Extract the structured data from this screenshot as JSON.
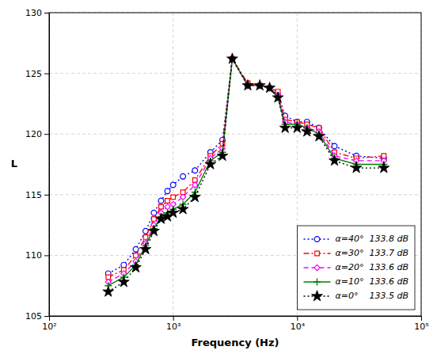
{
  "chart_data": {
    "type": "line",
    "xlabel": "Frequency (Hz)",
    "ylabel": "L",
    "log": "x",
    "xlim": [
      100,
      100000
    ],
    "ylim": [
      105,
      130
    ],
    "xticks": [
      {
        "value": 100,
        "label": "10²"
      },
      {
        "value": 1000,
        "label": "10³"
      },
      {
        "value": 10000,
        "label": "10⁴"
      },
      {
        "value": 100000,
        "label": "10⁵"
      }
    ],
    "yticks": [
      105,
      110,
      115,
      120,
      125,
      130
    ],
    "grid": true,
    "legend": "lower right",
    "x": [
      300,
      400,
      500,
      600,
      700,
      800,
      900,
      1000,
      1200,
      1500,
      2000,
      2500,
      3000,
      4000,
      5000,
      6000,
      7000,
      8000,
      10000,
      12000,
      15000,
      20000,
      30000,
      50000
    ],
    "series": [
      {
        "name": "α=40°  133.8 dB",
        "color": "#0000FF",
        "line_style": "dotted",
        "marker": "circle",
        "values": [
          108.5,
          109.2,
          110.5,
          112.0,
          113.5,
          114.5,
          115.3,
          115.8,
          116.5,
          117.0,
          118.5,
          119.5,
          126.2,
          124.0,
          124.0,
          123.8,
          123.2,
          121.5,
          121.0,
          121.0,
          120.5,
          119.0,
          118.2,
          118.0
        ]
      },
      {
        "name": "α=30°  133.7 dB",
        "color": "#FF0000",
        "line_style": "dashdot",
        "marker": "square",
        "values": [
          108.2,
          108.8,
          110.0,
          111.5,
          113.0,
          114.0,
          114.5,
          114.8,
          115.2,
          116.2,
          118.2,
          119.2,
          126.2,
          124.2,
          124.0,
          123.8,
          123.5,
          121.2,
          121.0,
          120.8,
          120.5,
          118.5,
          118.0,
          118.2
        ]
      },
      {
        "name": "α=20°  133.6 dB",
        "color": "#FF00FF",
        "line_style": "dashed",
        "marker": "diamond",
        "values": [
          107.8,
          108.5,
          109.5,
          111.0,
          112.5,
          113.5,
          114.0,
          114.2,
          114.8,
          115.8,
          118.0,
          118.8,
          126.2,
          124.0,
          124.0,
          123.8,
          123.2,
          121.0,
          120.8,
          120.5,
          120.2,
          118.2,
          117.8,
          117.8
        ]
      },
      {
        "name": "α=10°  133.6 dB",
        "color": "#008000",
        "line_style": "solid",
        "marker": "plus",
        "values": [
          107.5,
          108.2,
          109.2,
          110.8,
          112.2,
          113.2,
          113.5,
          113.8,
          114.2,
          115.2,
          117.8,
          118.5,
          126.2,
          124.0,
          124.0,
          123.8,
          123.0,
          120.8,
          120.8,
          120.5,
          120.0,
          118.0,
          117.5,
          117.5
        ]
      },
      {
        "name": "α=0°    133.5 dB",
        "color": "#000000",
        "line_style": "dotted",
        "marker": "star",
        "values": [
          107.0,
          107.8,
          109.0,
          110.5,
          112.0,
          113.0,
          113.2,
          113.5,
          113.8,
          114.8,
          117.5,
          118.2,
          126.2,
          124.0,
          124.0,
          123.8,
          123.0,
          120.5,
          120.5,
          120.2,
          119.8,
          117.8,
          117.2,
          117.2
        ]
      }
    ]
  }
}
